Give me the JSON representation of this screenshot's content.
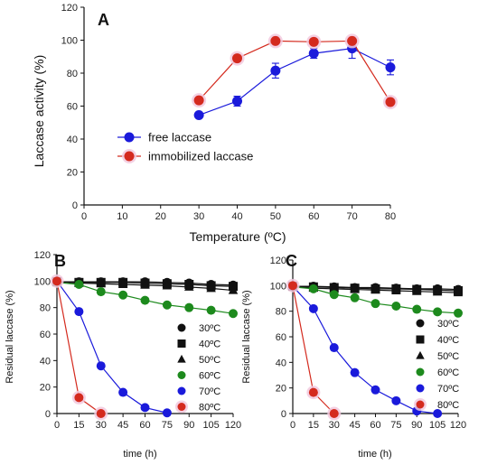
{
  "chart_data": [
    {
      "panel_label": "A",
      "type": "line",
      "xlabel": "Temperature (ºC)",
      "ylabel": "Laccase activity (%)",
      "xlim": [
        0,
        80
      ],
      "ylim": [
        0,
        120
      ],
      "xticks": [
        0,
        10,
        20,
        30,
        40,
        50,
        60,
        70,
        80
      ],
      "yticks": [
        0,
        20,
        40,
        60,
        80,
        100,
        120
      ],
      "legend_position": "middle-left",
      "series": [
        {
          "name": "free laccase",
          "color": "#1a1adb",
          "marker": "circle",
          "x": [
            30,
            40,
            50,
            60,
            70,
            80
          ],
          "y": [
            54.5,
            63,
            81.5,
            92,
            95,
            83.5
          ],
          "error": [
            0,
            3,
            4.5,
            3,
            6,
            4.5
          ]
        },
        {
          "name": "immobilized laccase",
          "color": "#d42a1e",
          "marker": "circle",
          "x": [
            30,
            40,
            50,
            60,
            70,
            80
          ],
          "y": [
            63.5,
            89,
            99.5,
            99,
            99.5,
            62.5
          ],
          "error": [
            0,
            0,
            0,
            0,
            1.5,
            0
          ]
        }
      ]
    },
    {
      "panel_label": "B",
      "type": "line",
      "xlabel": "time (h)",
      "ylabel": "Residual laccase (%)",
      "xlim": [
        0,
        120
      ],
      "ylim": [
        0,
        120
      ],
      "xticks": [
        0,
        15,
        30,
        45,
        60,
        75,
        90,
        105,
        120
      ],
      "yticks": [
        0,
        20,
        40,
        60,
        80,
        100,
        120
      ],
      "legend_position": "right",
      "series": [
        {
          "name": "30ºC",
          "color": "#111111",
          "marker": "circle",
          "x": [
            0,
            15,
            30,
            45,
            60,
            75,
            90,
            105,
            120
          ],
          "y": [
            99.5,
            99.5,
            99.5,
            99.5,
            99.5,
            99,
            98.5,
            97.5,
            97
          ]
        },
        {
          "name": "40ºC",
          "color": "#111111",
          "marker": "square",
          "x": [
            0,
            15,
            30,
            45,
            60,
            75,
            90,
            105,
            120
          ],
          "y": [
            99.5,
            99,
            99,
            99,
            98.5,
            98,
            97.5,
            96.5,
            96
          ]
        },
        {
          "name": "50ºC",
          "color": "#111111",
          "marker": "triangle",
          "x": [
            0,
            15,
            30,
            45,
            60,
            75,
            90,
            105,
            120
          ],
          "y": [
            99.5,
            98.5,
            98,
            97.5,
            97,
            96.5,
            95.5,
            94.5,
            93
          ]
        },
        {
          "name": "60ºC",
          "color": "#1d8a1d",
          "marker": "circle",
          "x": [
            0,
            15,
            30,
            45,
            60,
            75,
            90,
            105,
            120
          ],
          "y": [
            99,
            97.5,
            92,
            89.5,
            85.5,
            82,
            80,
            78,
            75.5
          ]
        },
        {
          "name": "70ºC",
          "color": "#1a1adb",
          "marker": "circle",
          "x": [
            0,
            15,
            30,
            45,
            60,
            75
          ],
          "y": [
            100,
            77,
            36,
            16,
            4.5,
            0.5
          ]
        },
        {
          "name": "80ºC",
          "color": "#d42a1e",
          "marker": "circle",
          "x": [
            0,
            15,
            30
          ],
          "y": [
            100,
            12,
            0
          ]
        }
      ]
    },
    {
      "panel_label": "C",
      "type": "line",
      "xlabel": "time (h)",
      "ylabel": "Residual laccase (%)",
      "xlim": [
        0,
        120
      ],
      "ylim": [
        0,
        120
      ],
      "xticks": [
        0,
        15,
        30,
        45,
        60,
        75,
        90,
        105,
        120
      ],
      "yticks": [
        0,
        20,
        40,
        60,
        80,
        100,
        120
      ],
      "legend_position": "right",
      "series": [
        {
          "name": "30ºC",
          "color": "#111111",
          "marker": "circle",
          "x": [
            0,
            15,
            30,
            45,
            60,
            75,
            90,
            105,
            120
          ],
          "y": [
            99.5,
            99.5,
            99,
            98.5,
            98.5,
            98,
            97.5,
            97.5,
            97
          ]
        },
        {
          "name": "40ºC",
          "color": "#111111",
          "marker": "square",
          "x": [
            0,
            15,
            30,
            45,
            60,
            75,
            90,
            105,
            120
          ],
          "y": [
            99.5,
            99,
            98.5,
            98,
            97.5,
            97.5,
            97,
            96.5,
            96
          ]
        },
        {
          "name": "50ºC",
          "color": "#111111",
          "marker": "triangle",
          "x": [
            0,
            15,
            30,
            45,
            60,
            75,
            90,
            105,
            120
          ],
          "y": [
            99.5,
            98,
            97.5,
            97,
            96.5,
            96,
            95.5,
            95,
            94.5
          ]
        },
        {
          "name": "60ºC",
          "color": "#1d8a1d",
          "marker": "circle",
          "x": [
            0,
            15,
            30,
            45,
            60,
            75,
            90,
            105,
            120
          ],
          "y": [
            99,
            97.5,
            93,
            90.5,
            86,
            84,
            81.5,
            79.5,
            78.5
          ]
        },
        {
          "name": "70ºC",
          "color": "#1a1adb",
          "marker": "circle",
          "x": [
            0,
            15,
            30,
            45,
            60,
            75,
            90,
            105
          ],
          "y": [
            99.5,
            82,
            51.5,
            32,
            18.5,
            10,
            2,
            0
          ]
        },
        {
          "name": "80ºC",
          "color": "#d42a1e",
          "marker": "circle",
          "x": [
            0,
            15,
            30
          ],
          "y": [
            100,
            16.5,
            0
          ]
        }
      ]
    }
  ]
}
